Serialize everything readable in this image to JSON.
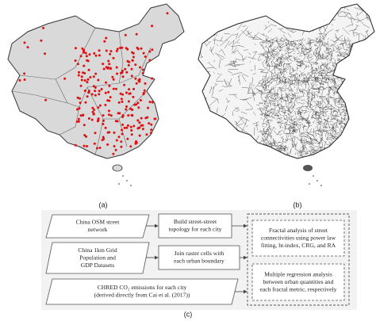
{
  "figure": {
    "panel_labels": [
      "(a)",
      "(b)",
      "(c)"
    ],
    "flowchart": {
      "inputs": [
        {
          "lines": [
            "China OSM street",
            "network"
          ]
        },
        {
          "lines": [
            "China 1km Grid",
            "Population and",
            "GDP Datasets"
          ]
        },
        {
          "lines": [
            "CHRED CO₂ emissions for each city",
            "(derived directly from Cai et al. (2017))"
          ]
        }
      ],
      "steps": [
        {
          "lines": [
            "Build street-street",
            "topology for each city"
          ]
        },
        {
          "lines": [
            "Join raster cells with",
            "each urban boundary"
          ]
        }
      ],
      "analyses": [
        {
          "lines": [
            "Fractal analysis of street",
            "connectivities using power law",
            "fitting, ht-index, CRG, and RA"
          ]
        },
        {
          "lines": [
            "Multiple regression analysis",
            "between urban quantities and",
            "each fractal metric, respectively"
          ]
        }
      ]
    }
  }
}
